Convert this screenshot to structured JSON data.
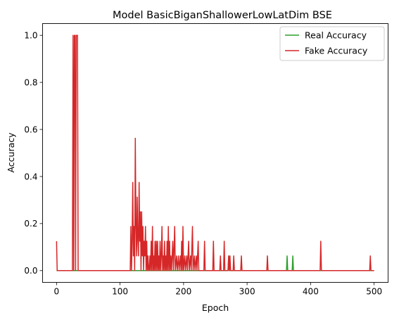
{
  "chart_data": {
    "type": "line",
    "title": "Model BasicBiganShallowerLowLatDim BSE",
    "xlabel": "Epoch",
    "ylabel": "Accuracy",
    "xlim": [
      -22,
      522
    ],
    "ylim": [
      -0.05,
      1.05
    ],
    "xticks": [
      0,
      100,
      200,
      300,
      400,
      500
    ],
    "yticks": [
      0.0,
      0.2,
      0.4,
      0.6,
      0.8,
      1.0
    ],
    "xtick_labels": [
      "0",
      "100",
      "200",
      "300",
      "400",
      "500"
    ],
    "ytick_labels": [
      "0.0",
      "0.2",
      "0.4",
      "0.6",
      "0.8",
      "1.0"
    ],
    "legend_position": "top-right",
    "series": [
      {
        "name": "Real Accuracy",
        "color": "#2ca02c",
        "points": [
          [
            0,
            0
          ],
          [
            270,
            0
          ],
          [
            271,
            0.0625
          ],
          [
            272,
            0
          ],
          [
            362,
            0
          ],
          [
            363,
            0.0625
          ],
          [
            364,
            0
          ],
          [
            371,
            0
          ],
          [
            372,
            0.0625
          ],
          [
            373,
            0
          ],
          [
            500,
            0
          ]
        ]
      },
      {
        "name": "Fake Accuracy",
        "color": "#d62728",
        "points": [
          [
            0,
            0.125
          ],
          [
            1,
            0
          ],
          [
            25,
            0
          ],
          [
            26,
            1.0
          ],
          [
            27,
            0
          ],
          [
            28,
            1.0
          ],
          [
            29,
            1.0
          ],
          [
            30,
            0
          ],
          [
            31,
            1.0
          ],
          [
            32,
            1.0
          ],
          [
            33,
            1.0
          ],
          [
            34,
            0
          ],
          [
            116,
            0
          ],
          [
            117,
            0.1875
          ],
          [
            118,
            0
          ],
          [
            119,
            0.125
          ],
          [
            120,
            0.375
          ],
          [
            121,
            0.0625
          ],
          [
            122,
            0.1875
          ],
          [
            123,
            0
          ],
          [
            124,
            0.5625
          ],
          [
            125,
            0.1875
          ],
          [
            126,
            0.0625
          ],
          [
            127,
            0.3125
          ],
          [
            128,
            0.125
          ],
          [
            129,
            0.0625
          ],
          [
            130,
            0.375
          ],
          [
            131,
            0.125
          ],
          [
            132,
            0.25
          ],
          [
            133,
            0
          ],
          [
            134,
            0.25
          ],
          [
            135,
            0.0625
          ],
          [
            136,
            0.1875
          ],
          [
            137,
            0
          ],
          [
            138,
            0.125
          ],
          [
            139,
            0.0625
          ],
          [
            140,
            0.1875
          ],
          [
            141,
            0
          ],
          [
            142,
            0.125
          ],
          [
            143,
            0
          ],
          [
            144,
            0.0625
          ],
          [
            145,
            0
          ],
          [
            146,
            0
          ],
          [
            147,
            0.0625
          ],
          [
            148,
            0
          ],
          [
            149,
            0.125
          ],
          [
            150,
            0
          ],
          [
            151,
            0.1875
          ],
          [
            152,
            0
          ],
          [
            153,
            0.0625
          ],
          [
            154,
            0
          ],
          [
            155,
            0.125
          ],
          [
            156,
            0
          ],
          [
            157,
            0.125
          ],
          [
            158,
            0
          ],
          [
            159,
            0.125
          ],
          [
            160,
            0
          ],
          [
            161,
            0.0625
          ],
          [
            162,
            0
          ],
          [
            163,
            0.125
          ],
          [
            164,
            0
          ],
          [
            165,
            0.0625
          ],
          [
            166,
            0.1875
          ],
          [
            167,
            0
          ],
          [
            168,
            0.0625
          ],
          [
            169,
            0
          ],
          [
            170,
            0.125
          ],
          [
            171,
            0
          ],
          [
            172,
            0.0625
          ],
          [
            173,
            0
          ],
          [
            174,
            0.125
          ],
          [
            175,
            0
          ],
          [
            176,
            0.1875
          ],
          [
            177,
            0
          ],
          [
            178,
            0.125
          ],
          [
            179,
            0
          ],
          [
            180,
            0.0625
          ],
          [
            181,
            0
          ],
          [
            183,
            0.125
          ],
          [
            184,
            0
          ],
          [
            186,
            0.1875
          ],
          [
            187,
            0
          ],
          [
            189,
            0.0625
          ],
          [
            190,
            0
          ],
          [
            192,
            0.0625
          ],
          [
            193,
            0
          ],
          [
            195,
            0.0625
          ],
          [
            196,
            0
          ],
          [
            197,
            0.125
          ],
          [
            198,
            0
          ],
          [
            199,
            0.1875
          ],
          [
            200,
            0
          ],
          [
            202,
            0.0625
          ],
          [
            203,
            0
          ],
          [
            205,
            0.0625
          ],
          [
            206,
            0
          ],
          [
            208,
            0.125
          ],
          [
            209,
            0
          ],
          [
            211,
            0.0625
          ],
          [
            212,
            0
          ],
          [
            214,
            0.1875
          ],
          [
            215,
            0
          ],
          [
            217,
            0.0625
          ],
          [
            218,
            0
          ],
          [
            220,
            0.0625
          ],
          [
            221,
            0
          ],
          [
            223,
            0.125
          ],
          [
            224,
            0
          ],
          [
            232,
            0
          ],
          [
            233,
            0.125
          ],
          [
            234,
            0
          ],
          [
            246,
            0
          ],
          [
            247,
            0.125
          ],
          [
            248,
            0
          ],
          [
            257,
            0
          ],
          [
            258,
            0.0625
          ],
          [
            259,
            0
          ],
          [
            263,
            0
          ],
          [
            264,
            0.125
          ],
          [
            265,
            0
          ],
          [
            270,
            0
          ],
          [
            271,
            0.0625
          ],
          [
            272,
            0
          ],
          [
            273,
            0.0625
          ],
          [
            274,
            0
          ],
          [
            278,
            0
          ],
          [
            279,
            0.0625
          ],
          [
            280,
            0
          ],
          [
            290,
            0
          ],
          [
            291,
            0.0625
          ],
          [
            292,
            0
          ],
          [
            331,
            0
          ],
          [
            332,
            0.0625
          ],
          [
            333,
            0
          ],
          [
            415,
            0
          ],
          [
            416,
            0.125
          ],
          [
            417,
            0
          ],
          [
            493,
            0
          ],
          [
            494,
            0.0625
          ],
          [
            495,
            0
          ],
          [
            500,
            0
          ]
        ]
      }
    ]
  }
}
